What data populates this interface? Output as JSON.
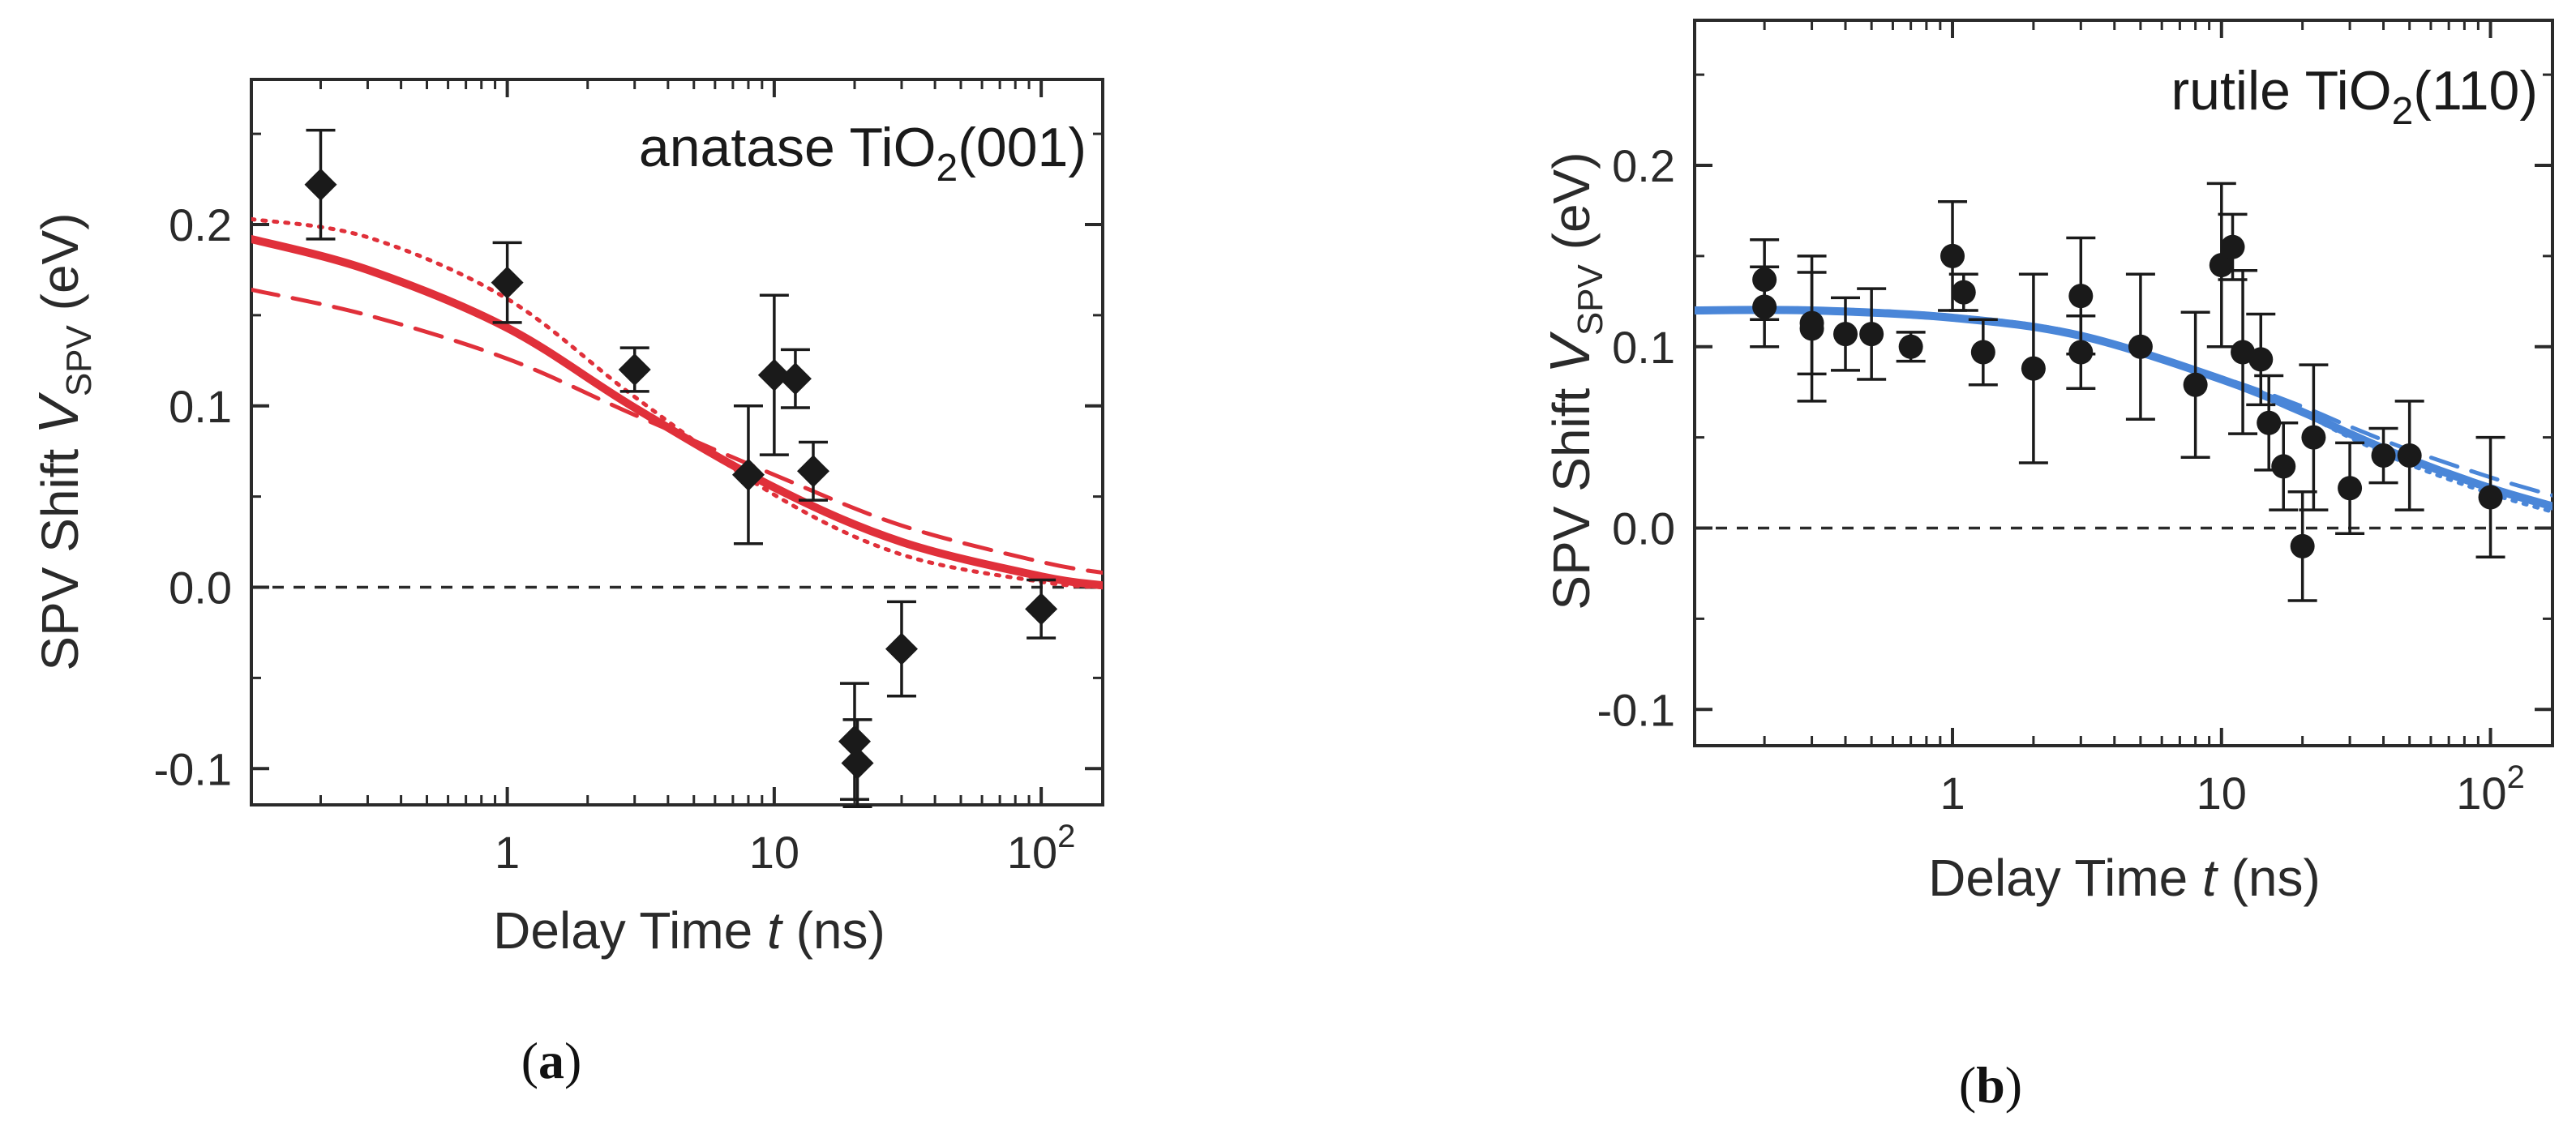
{
  "chart_data": [
    {
      "type": "scatter",
      "panel_label": "a",
      "title": {
        "pre": "anatase TiO",
        "sub": "2",
        "post": "(001)"
      },
      "xlabel": {
        "pre": "Delay Time ",
        "var": "t",
        "post": " (ns)"
      },
      "ylabel": {
        "pre": "SPV Shift ",
        "var": "V",
        "sub": "SPV",
        "post": " (eV)"
      },
      "xscale": "log",
      "xlim": [
        0.11,
        170
      ],
      "ylim": [
        -0.12,
        0.28
      ],
      "xticks": [
        {
          "value": 1,
          "label": "1"
        },
        {
          "value": 10,
          "label": "10"
        },
        {
          "value": 100,
          "label": "10",
          "sup": "2"
        }
      ],
      "yticks": [
        {
          "value": -0.1,
          "label": "-0.1"
        },
        {
          "value": 0.0,
          "label": "0.0"
        },
        {
          "value": 0.1,
          "label": "0.1"
        },
        {
          "value": 0.2,
          "label": "0.2"
        }
      ],
      "zero_line": true,
      "marker": "diamond",
      "marker_color": "#1a1a1a",
      "points": [
        {
          "x": 0.2,
          "y": 0.222,
          "err": 0.03
        },
        {
          "x": 1.0,
          "y": 0.168,
          "err": 0.022
        },
        {
          "x": 3.0,
          "y": 0.12,
          "err": 0.012
        },
        {
          "x": 8.0,
          "y": 0.062,
          "err": 0.038
        },
        {
          "x": 10.0,
          "y": 0.117,
          "err": 0.044
        },
        {
          "x": 12.0,
          "y": 0.115,
          "err": 0.016
        },
        {
          "x": 14.0,
          "y": 0.064,
          "err": 0.016
        },
        {
          "x": 20.0,
          "y": -0.085,
          "err": 0.032
        },
        {
          "x": 20.5,
          "y": -0.097,
          "err": 0.024
        },
        {
          "x": 30.0,
          "y": -0.034,
          "err": 0.026
        },
        {
          "x": 100.0,
          "y": -0.012,
          "err": 0.016
        }
      ],
      "series": [
        {
          "style": "solid",
          "color": "#e0303a",
          "x": [
            0.11,
            0.3,
            1,
            3,
            10,
            30,
            100,
            170
          ],
          "y": [
            0.192,
            0.175,
            0.143,
            0.099,
            0.055,
            0.025,
            0.006,
            0.001
          ]
        },
        {
          "style": "dotted",
          "color": "#e0303a",
          "x": [
            0.11,
            0.3,
            1,
            3,
            10,
            30,
            100,
            170
          ],
          "y": [
            0.203,
            0.193,
            0.159,
            0.105,
            0.051,
            0.018,
            0.003,
            0.0
          ]
        },
        {
          "style": "dashed",
          "color": "#e0303a",
          "x": [
            0.11,
            0.3,
            1,
            3,
            10,
            30,
            100,
            170
          ],
          "y": [
            0.164,
            0.15,
            0.126,
            0.095,
            0.062,
            0.034,
            0.014,
            0.008
          ]
        }
      ]
    },
    {
      "type": "scatter",
      "panel_label": "b",
      "title": {
        "pre": "rutile TiO",
        "sub": "2",
        "post": "(110)"
      },
      "xlabel": {
        "pre": "Delay Time ",
        "var": "t",
        "post": " (ns)"
      },
      "ylabel": {
        "pre": "SPV Shift ",
        "var": "V",
        "sub": "SPV",
        "post": " (eV)"
      },
      "xscale": "log",
      "xlim": [
        0.11,
        170
      ],
      "ylim": [
        -0.12,
        0.28
      ],
      "xticks": [
        {
          "value": 1,
          "label": "1"
        },
        {
          "value": 10,
          "label": "10"
        },
        {
          "value": 100,
          "label": "10",
          "sup": "2"
        }
      ],
      "yticks": [
        {
          "value": -0.1,
          "label": "-0.1"
        },
        {
          "value": 0.0,
          "label": "0.0"
        },
        {
          "value": 0.1,
          "label": "0.1"
        },
        {
          "value": 0.2,
          "label": "0.2"
        }
      ],
      "zero_line": true,
      "marker": "circle",
      "marker_color": "#1a1a1a",
      "points": [
        {
          "x": 0.2,
          "y": 0.137,
          "err": 0.022
        },
        {
          "x": 0.2,
          "y": 0.122,
          "err": 0.022
        },
        {
          "x": 0.3,
          "y": 0.113,
          "err": 0.028
        },
        {
          "x": 0.3,
          "y": 0.11,
          "err": 0.04
        },
        {
          "x": 0.4,
          "y": 0.107,
          "err": 0.02
        },
        {
          "x": 0.5,
          "y": 0.107,
          "err": 0.025
        },
        {
          "x": 0.7,
          "y": 0.1,
          "err": 0.008
        },
        {
          "x": 1.0,
          "y": 0.15,
          "err": 0.03
        },
        {
          "x": 1.1,
          "y": 0.13,
          "err": 0.01
        },
        {
          "x": 1.3,
          "y": 0.097,
          "err": 0.018
        },
        {
          "x": 2.0,
          "y": 0.088,
          "err": 0.052
        },
        {
          "x": 3.0,
          "y": 0.128,
          "err": 0.032
        },
        {
          "x": 3.0,
          "y": 0.097,
          "err": 0.02
        },
        {
          "x": 5.0,
          "y": 0.1,
          "err": 0.04
        },
        {
          "x": 8.0,
          "y": 0.079,
          "err": 0.04
        },
        {
          "x": 10.0,
          "y": 0.145,
          "err": 0.045
        },
        {
          "x": 11.0,
          "y": 0.155,
          "err": 0.018
        },
        {
          "x": 12.0,
          "y": 0.097,
          "err": 0.045
        },
        {
          "x": 14.0,
          "y": 0.093,
          "err": 0.025
        },
        {
          "x": 15.0,
          "y": 0.058,
          "err": 0.026
        },
        {
          "x": 17.0,
          "y": 0.034,
          "err": 0.024
        },
        {
          "x": 20.0,
          "y": -0.01,
          "err": 0.03
        },
        {
          "x": 22.0,
          "y": 0.05,
          "err": 0.04
        },
        {
          "x": 30.0,
          "y": 0.022,
          "err": 0.025
        },
        {
          "x": 40.0,
          "y": 0.04,
          "err": 0.015
        },
        {
          "x": 50.0,
          "y": 0.04,
          "err": 0.03
        },
        {
          "x": 100.0,
          "y": 0.017,
          "err": 0.033
        }
      ],
      "series": [
        {
          "style": "solid",
          "color": "#4a86d8",
          "x": [
            0.11,
            0.3,
            1,
            3,
            10,
            20,
            30,
            50,
            100,
            170
          ],
          "y": [
            0.12,
            0.12,
            0.116,
            0.106,
            0.082,
            0.064,
            0.052,
            0.038,
            0.022,
            0.012
          ]
        },
        {
          "style": "dotted",
          "color": "#4a86d8",
          "x": [
            0.11,
            0.3,
            1,
            3,
            10,
            20,
            30,
            50,
            100,
            170
          ],
          "y": [
            0.121,
            0.121,
            0.117,
            0.107,
            0.082,
            0.063,
            0.05,
            0.035,
            0.019,
            0.009
          ]
        },
        {
          "style": "dashed",
          "color": "#4a86d8",
          "x": [
            0.11,
            0.3,
            1,
            3,
            10,
            20,
            30,
            50,
            100,
            170
          ],
          "y": [
            0.119,
            0.119,
            0.115,
            0.106,
            0.083,
            0.067,
            0.056,
            0.043,
            0.028,
            0.018
          ]
        }
      ]
    }
  ]
}
